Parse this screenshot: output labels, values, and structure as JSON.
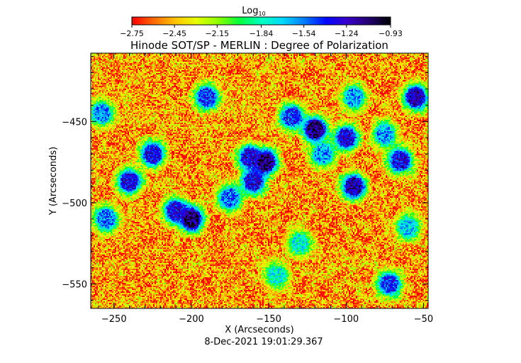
{
  "chart_data": {
    "type": "heatmap",
    "title": "Hinode SOT/SP - MERLIN : Degree of Polarization",
    "xlabel": "X (Arcseconds)",
    "ylabel": "Y (Arcseconds)",
    "footer": "8-Dec-2021 19:01:29.367",
    "xlim": [
      -265,
      -47
    ],
    "ylim": [
      -565,
      -408
    ],
    "xticks": [
      -250,
      -200,
      -150,
      -100,
      -50
    ],
    "yticks": [
      -450,
      -500,
      -550
    ],
    "xtick_labels": [
      "−250",
      "−200",
      "−150",
      "−100",
      "−50"
    ],
    "ytick_labels": [
      "−450",
      "−500",
      "−550"
    ],
    "colorbar": {
      "label_main": "Log",
      "label_sub": "10",
      "range": [
        -2.75,
        -0.93
      ],
      "tick_values": [
        -2.75,
        -2.45,
        -2.15,
        -1.84,
        -1.54,
        -1.24,
        -0.93
      ],
      "tick_labels": [
        "−2.75",
        "−2.45",
        "−2.15",
        "−1.84",
        "−1.54",
        "−1.24",
        "−0.93"
      ],
      "colors": [
        "#ff0000",
        "#ff6a00",
        "#ffc400",
        "#e6ff00",
        "#8cff00",
        "#00ff40",
        "#00ffc0",
        "#00d8ff",
        "#007cff",
        "#0008ff",
        "#3a00c8",
        "#24006e",
        "#000000"
      ]
    },
    "background_value": -2.5,
    "active_regions": [
      {
        "x": -190,
        "y": -435,
        "v": -1.4
      },
      {
        "x": -225,
        "y": -470,
        "v": -1.3
      },
      {
        "x": -240,
        "y": -487,
        "v": -1.3
      },
      {
        "x": -258,
        "y": -445,
        "v": -1.6
      },
      {
        "x": -200,
        "y": -510,
        "v": -1.1
      },
      {
        "x": -210,
        "y": -505,
        "v": -1.3
      },
      {
        "x": -175,
        "y": -497,
        "v": -1.5
      },
      {
        "x": -160,
        "y": -487,
        "v": -1.3
      },
      {
        "x": -152,
        "y": -475,
        "v": -1.1
      },
      {
        "x": -162,
        "y": -472,
        "v": -1.3
      },
      {
        "x": -135,
        "y": -447,
        "v": -1.4
      },
      {
        "x": -120,
        "y": -455,
        "v": -1.1
      },
      {
        "x": -100,
        "y": -460,
        "v": -1.3
      },
      {
        "x": -115,
        "y": -470,
        "v": -1.6
      },
      {
        "x": -95,
        "y": -490,
        "v": -1.2
      },
      {
        "x": -65,
        "y": -474,
        "v": -1.3
      },
      {
        "x": -55,
        "y": -435,
        "v": -1.2
      },
      {
        "x": -75,
        "y": -458,
        "v": -1.6
      },
      {
        "x": -255,
        "y": -510,
        "v": -1.5
      },
      {
        "x": -95,
        "y": -435,
        "v": -1.6
      },
      {
        "x": -72,
        "y": -550,
        "v": -1.4
      },
      {
        "x": -130,
        "y": -525,
        "v": -1.8
      },
      {
        "x": -145,
        "y": -545,
        "v": -1.8
      },
      {
        "x": -60,
        "y": -515,
        "v": -1.7
      }
    ]
  }
}
